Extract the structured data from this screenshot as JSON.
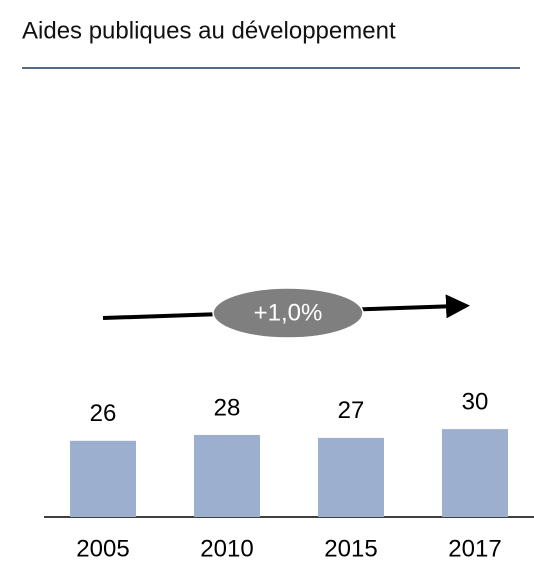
{
  "chart_data": {
    "type": "bar",
    "title": "Aides publiques au développement",
    "categories": [
      "2005",
      "2010",
      "2015",
      "2017"
    ],
    "values": [
      26,
      28,
      27,
      30
    ],
    "color": "#9dafcf",
    "annotation": "+1,0%"
  }
}
